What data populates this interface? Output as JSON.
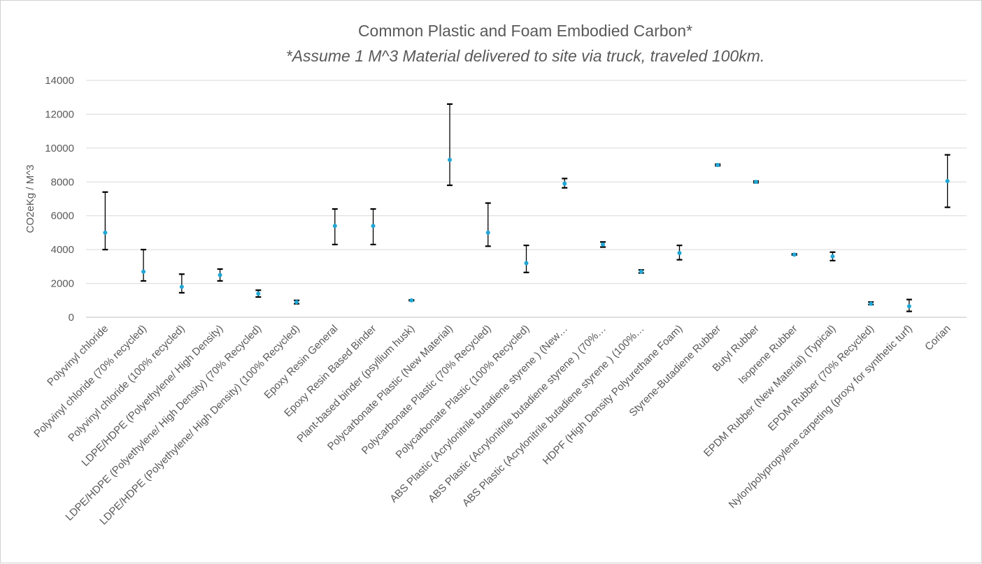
{
  "chart_data": {
    "type": "scatter",
    "title": "Common Plastic and Foam Embodied Carbon*",
    "subtitle": "*Assume 1 M^3 Material delivered to site via truck, traveled 100km.",
    "xlabel": "",
    "ylabel": "CO2eKg / M^3",
    "ylim": [
      0,
      14000
    ],
    "yticks": [
      "0",
      "2000",
      "4000",
      "6000",
      "8000",
      "10000",
      "12000",
      "14000"
    ],
    "grid": true,
    "marker_color": "#1fa7d6",
    "errorbar_color": "#000000",
    "categories": [
      "Polyvinyl chloride",
      "Polyvinyl chloride (70% recycled)",
      "Polyvinyl chloride (100% recycled)",
      "LDPE/HDPE (Polyethylene/ High Density)",
      "LDPE/HDPE (Polyethylene/ High Density) (70% Recycled)",
      "LDPE/HDPE (Polyethylene/ High Density) (100% Recycled)",
      "Epoxy Resin General",
      "Epoxy Resin Based Binder",
      "Plant-based binder (psyllium husk)",
      "Polycarbonate Plastic (New Material)",
      "Polycarbonate Plastic (70% Recycled)",
      "Polycarbonate Plastic (100% Recycled)",
      "ABS Plastic (Acrylonitrile butadiene styrene ) (New…",
      "ABS Plastic (Acrylonitrile butadiene styrene ) (70%…",
      "ABS Plastic (Acrylonitrile butadiene styrene ) (100%…",
      "HDPF (High Density Polyurethane Foam)",
      "Styrene-Butadiene Rubber",
      "Butyl Rubber",
      "Isoprene Rubber",
      "EPDM Rubber (New Material) (Typical)",
      "EPDM Rubber (70% Recycled)",
      "Nylon/polypropylene carpeting (proxy for synthetic turf)",
      "Corian"
    ],
    "values": [
      5000,
      2700,
      1800,
      2500,
      1400,
      900,
      5400,
      5400,
      1000,
      9300,
      5000,
      3200,
      7900,
      4300,
      2700,
      3800,
      9000,
      8000,
      3700,
      3600,
      800,
      650,
      8050
    ],
    "y_lower": [
      4000,
      2150,
      1450,
      2150,
      1200,
      800,
      4300,
      4300,
      980,
      7800,
      4200,
      2650,
      7650,
      4150,
      2620,
      3400,
      8950,
      7950,
      3680,
      3350,
      750,
      350,
      6500
    ],
    "y_upper": [
      7400,
      4000,
      2550,
      2850,
      1600,
      1000,
      6400,
      6400,
      1030,
      12600,
      6750,
      4250,
      8200,
      4450,
      2800,
      4250,
      9050,
      8050,
      3750,
      3850,
      900,
      1050,
      9600
    ]
  }
}
